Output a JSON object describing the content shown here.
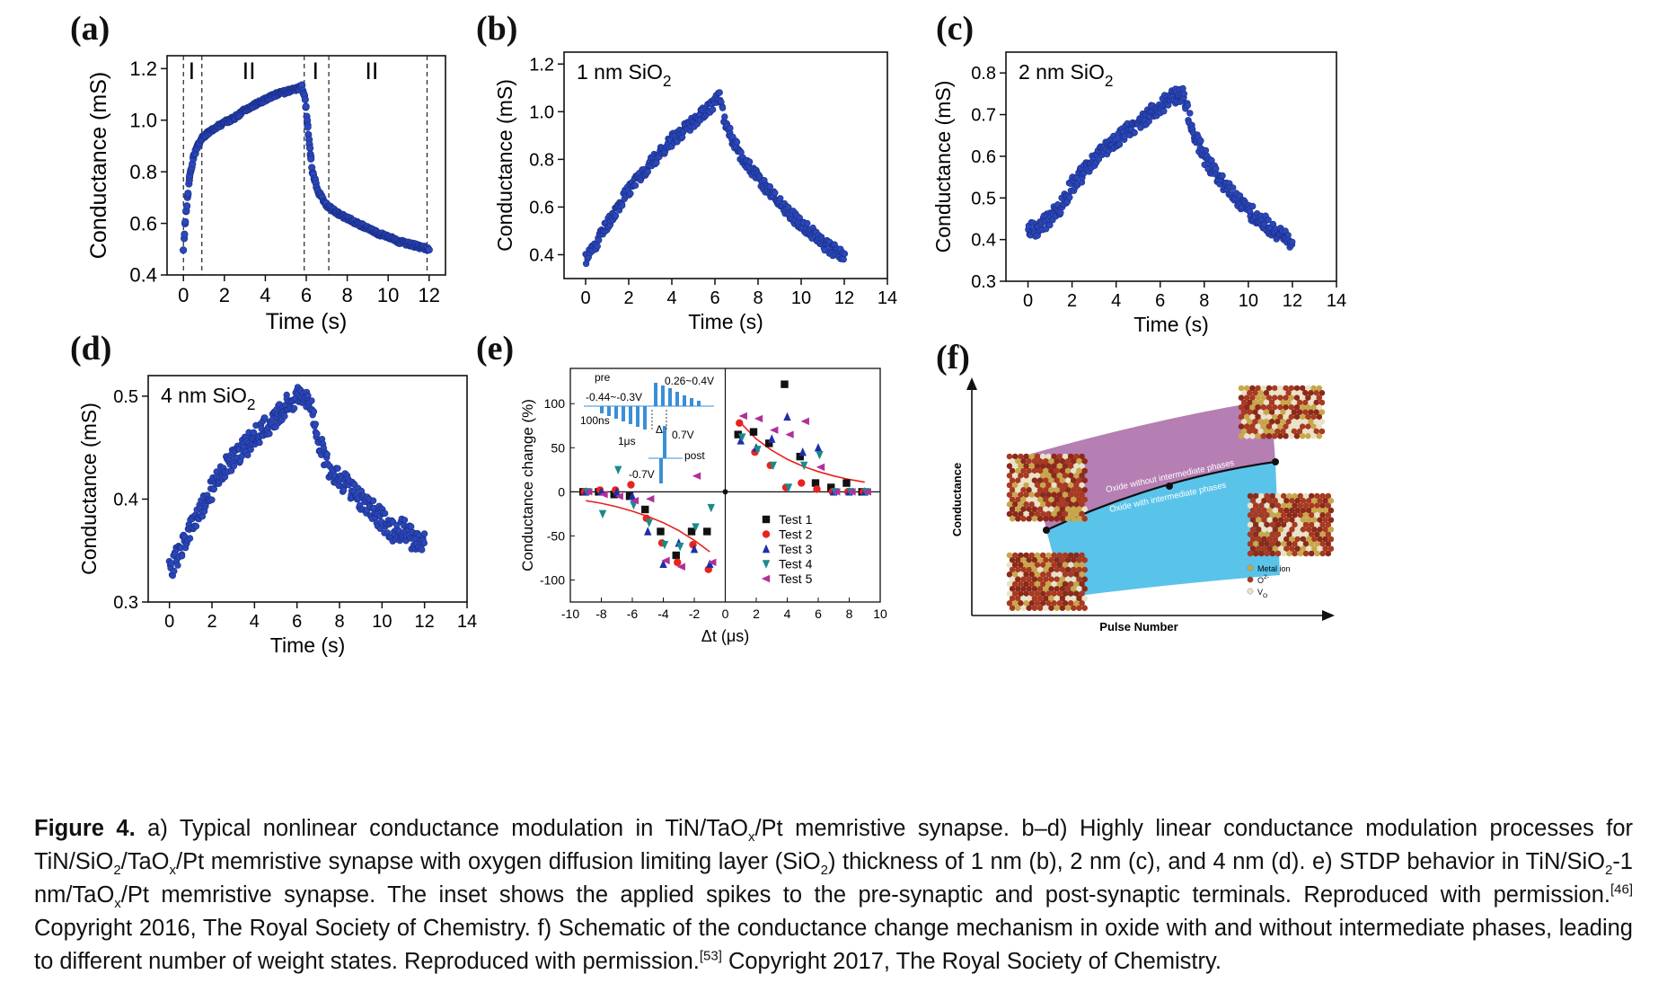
{
  "colors": {
    "marker": "#2b47b8",
    "marker_edge": "#1a2f8a",
    "fit": "#e8231e",
    "purple": "#b57fb3",
    "cyan": "#5ac3ea"
  },
  "chart_data": [
    {
      "panel": "(a)",
      "type": "scatter",
      "xlabel": "Time (s)",
      "ylabel": "Conductance (mS)",
      "xlim": [
        -0.8,
        12.8
      ],
      "ylim": [
        0.4,
        1.25
      ],
      "xticks": [
        0,
        2,
        4,
        6,
        8,
        10,
        12
      ],
      "yticks": [
        0.4,
        0.6,
        0.8,
        1.0,
        1.2
      ],
      "ytick_labels": [
        "0.4",
        "0.6",
        "0.8",
        "1.0",
        "1.2"
      ],
      "vlines": [
        0,
        0.9,
        5.9,
        7.1,
        11.9
      ],
      "regions": [
        {
          "x": 0.4,
          "label": "I"
        },
        {
          "x": 3.2,
          "label": "II"
        },
        {
          "x": 6.45,
          "label": "I"
        },
        {
          "x": 9.2,
          "label": "II"
        }
      ],
      "series": [
        {
          "x": [
            0,
            0.1,
            0.2,
            0.3,
            0.5,
            0.7,
            0.9,
            1.2,
            1.5,
            2,
            2.5,
            3,
            3.5,
            4,
            4.5,
            5,
            5.5,
            5.8,
            5.95,
            6.1,
            6.3,
            6.6,
            7,
            7.5,
            8,
            8.5,
            9,
            9.5,
            10,
            10.5,
            11,
            11.5,
            12
          ],
          "y": [
            0.5,
            0.62,
            0.7,
            0.78,
            0.86,
            0.9,
            0.93,
            0.95,
            0.97,
            0.99,
            1.01,
            1.04,
            1.06,
            1.08,
            1.1,
            1.11,
            1.12,
            1.13,
            1.08,
            0.95,
            0.8,
            0.72,
            0.67,
            0.64,
            0.62,
            0.6,
            0.58,
            0.56,
            0.55,
            0.53,
            0.52,
            0.51,
            0.5
          ]
        }
      ]
    },
    {
      "panel": "(b)",
      "type": "scatter",
      "annotation": "1 nm SiO2",
      "xlabel": "Time (s)",
      "ylabel": "Conductance (mS)",
      "xlim": [
        -1,
        14
      ],
      "ylim": [
        0.3,
        1.25
      ],
      "xticks": [
        0,
        2,
        4,
        6,
        8,
        10,
        12,
        14
      ],
      "yticks": [
        0.4,
        0.6,
        0.8,
        1.0,
        1.2
      ],
      "ytick_labels": [
        "0.4",
        "0.6",
        "0.8",
        "1.0",
        "1.2"
      ],
      "series": [
        {
          "x": [
            0,
            0.5,
            1,
            1.5,
            2,
            2.5,
            3,
            3.5,
            4,
            4.5,
            5,
            5.5,
            6,
            6.2,
            6.5,
            7,
            7.5,
            8,
            8.5,
            9,
            9.5,
            10,
            10.5,
            11,
            11.5,
            12
          ],
          "y": [
            0.38,
            0.45,
            0.53,
            0.6,
            0.67,
            0.73,
            0.78,
            0.83,
            0.88,
            0.92,
            0.96,
            1.0,
            1.04,
            1.06,
            0.95,
            0.85,
            0.78,
            0.72,
            0.67,
            0.62,
            0.57,
            0.53,
            0.49,
            0.45,
            0.42,
            0.39
          ]
        }
      ]
    },
    {
      "panel": "(c)",
      "type": "scatter",
      "annotation": "2 nm SiO2",
      "xlabel": "Time (s)",
      "ylabel": "Conductance (mS)",
      "xlim": [
        -1,
        14
      ],
      "ylim": [
        0.3,
        0.85
      ],
      "xticks": [
        0,
        2,
        4,
        6,
        8,
        10,
        12,
        14
      ],
      "yticks": [
        0.3,
        0.4,
        0.5,
        0.6,
        0.7,
        0.8
      ],
      "ytick_labels": [
        "0.3",
        "0.4",
        "0.5",
        "0.6",
        "0.7",
        "0.8"
      ],
      "series": [
        {
          "x": [
            0,
            0.5,
            1,
            1.5,
            2,
            2.5,
            3,
            3.5,
            4,
            4.5,
            5,
            5.5,
            6,
            6.5,
            7,
            7.5,
            8,
            8.5,
            9,
            9.5,
            10,
            10.5,
            11,
            11.5,
            12
          ],
          "y": [
            0.42,
            0.43,
            0.45,
            0.48,
            0.53,
            0.56,
            0.59,
            0.62,
            0.64,
            0.66,
            0.68,
            0.7,
            0.72,
            0.74,
            0.75,
            0.66,
            0.6,
            0.56,
            0.53,
            0.5,
            0.47,
            0.45,
            0.43,
            0.41,
            0.39
          ]
        }
      ]
    },
    {
      "panel": "(d)",
      "type": "scatter",
      "annotation": "4 nm SiO2",
      "xlabel": "Time (s)",
      "ylabel": "Conductance (mS)",
      "xlim": [
        -1,
        14
      ],
      "ylim": [
        0.3,
        0.52
      ],
      "xticks": [
        0,
        2,
        4,
        6,
        8,
        10,
        12,
        14
      ],
      "yticks": [
        0.3,
        0.4,
        0.5
      ],
      "ytick_labels": [
        "0.3",
        "0.4",
        "0.5"
      ],
      "series": [
        {
          "x": [
            0,
            0.5,
            1,
            1.5,
            2,
            2.5,
            3,
            3.5,
            4,
            4.5,
            5,
            5.5,
            6,
            6.5,
            7,
            7.5,
            8,
            8.5,
            9,
            9.5,
            10,
            10.5,
            11,
            11.5,
            12
          ],
          "y": [
            0.33,
            0.35,
            0.37,
            0.39,
            0.41,
            0.43,
            0.44,
            0.45,
            0.46,
            0.47,
            0.48,
            0.49,
            0.5,
            0.5,
            0.46,
            0.43,
            0.42,
            0.41,
            0.4,
            0.39,
            0.38,
            0.37,
            0.37,
            0.36,
            0.36
          ]
        }
      ]
    },
    {
      "panel": "(e)",
      "type": "scatter",
      "xlabel": "Δt (μs)",
      "ylabel": "Conductance change (%)",
      "xlim": [
        -10,
        10
      ],
      "ylim": [
        -125,
        140
      ],
      "xticks": [
        -10,
        -8,
        -6,
        -4,
        -2,
        0,
        2,
        4,
        6,
        8,
        10
      ],
      "yticks": [
        -100,
        -50,
        0,
        50,
        100
      ],
      "series": [
        {
          "name": "Test 1",
          "marker": "square",
          "color": "#111111",
          "x": [
            -9,
            -8,
            -7,
            -6,
            -5,
            -4,
            -3,
            -2,
            -1,
            1,
            2,
            3,
            4,
            5,
            6,
            7,
            8,
            9
          ],
          "y": [
            0,
            0,
            -3,
            -5,
            -20,
            -45,
            -72,
            -45,
            -45,
            65,
            68,
            55,
            122,
            40,
            10,
            5,
            10,
            0
          ]
        },
        {
          "name": "Test 2",
          "marker": "circle",
          "color": "#e8231e",
          "x": [
            -9,
            -8,
            -7,
            -6,
            -5,
            -4,
            -3,
            -2,
            -1,
            1,
            2,
            3,
            4,
            5,
            6,
            7,
            8,
            9
          ],
          "y": [
            0,
            2,
            2,
            8,
            -30,
            -58,
            -80,
            -60,
            -88,
            78,
            45,
            30,
            5,
            10,
            3,
            0,
            0,
            0
          ]
        },
        {
          "name": "Test 3",
          "marker": "triangle-up",
          "color": "#1e2fa8",
          "x": [
            -9,
            -8,
            -7,
            -6,
            -5,
            -4,
            -3,
            -2,
            -1,
            1,
            2,
            3,
            4,
            5,
            6,
            7,
            8,
            9
          ],
          "y": [
            0,
            0,
            0,
            -5,
            -45,
            -82,
            -58,
            -65,
            -82,
            58,
            50,
            60,
            85,
            45,
            50,
            0,
            0,
            0
          ]
        },
        {
          "name": "Test 4",
          "marker": "triangle-down",
          "color": "#1a8a8a",
          "x": [
            -9,
            -8,
            -7,
            -6,
            -5,
            -4,
            -3,
            -2,
            -1,
            1,
            2,
            3,
            4,
            5,
            6,
            7,
            8,
            9
          ],
          "y": [
            0,
            -25,
            25,
            -15,
            -35,
            -60,
            -62,
            -40,
            -18,
            62,
            48,
            30,
            5,
            30,
            42,
            0,
            0,
            0
          ]
        },
        {
          "name": "Test 5",
          "marker": "triangle-left",
          "color": "#b0309a",
          "x": [
            -9,
            -8,
            -7,
            -6,
            -5,
            -4,
            -3,
            -2,
            -1,
            1,
            2,
            3,
            4,
            5,
            6,
            7,
            8,
            9
          ],
          "y": [
            0,
            -3,
            -5,
            -10,
            -8,
            -78,
            -85,
            18,
            -80,
            86,
            83,
            70,
            65,
            80,
            28,
            0,
            0,
            0
          ]
        }
      ],
      "fit_curves": [
        {
          "x": [
            -9,
            -8,
            -7,
            -6,
            -5,
            -4,
            -3,
            -2,
            -1
          ],
          "y": [
            -10,
            -13,
            -17,
            -22,
            -28,
            -35,
            -44,
            -55,
            -68
          ]
        },
        {
          "x": [
            1,
            2,
            3,
            4,
            5,
            6,
            7,
            8,
            9
          ],
          "y": [
            78,
            60,
            47,
            37,
            29,
            23,
            18,
            14,
            11
          ]
        }
      ],
      "legend_position": "lower-right",
      "inset": {
        "pre": "pre",
        "post": "post",
        "v_pre_pos": "0.26~0.4V",
        "v_pre_neg": "-0.44~-0.3V",
        "width": "100ns",
        "interval": "1μs",
        "dt": "Δt",
        "v_post_pos": "0.7V",
        "v_post_neg": "-0.7V"
      }
    },
    {
      "panel": "(f)",
      "type": "diagram",
      "xlabel": "Pulse Number",
      "ylabel": "Conductance",
      "band_top_label": "Oxide without intermediate phases",
      "band_bottom_label": "Oxide with intermediate phases",
      "legend": [
        "Metal ion",
        "O2-",
        "VO"
      ]
    }
  ],
  "caption": {
    "figure_label": "Figure 4.",
    "text_a": " a) Typical nonlinear conductance modulation in TiN/TaO",
    "sub_x1": "x",
    "text_b": "/Pt memristive synapse. b–d) Highly linear conductance modulation processes for TiN/SiO",
    "sub_2a": "2",
    "text_c": "/TaO",
    "sub_x2": "x",
    "text_d": "/Pt memristive synapse with oxygen diffusion limiting layer (SiO",
    "sub_2b": "2",
    "text_e": ") thickness of 1 nm (b), 2 nm (c), and 4 nm (d). e) STDP behavior in TiN/SiO",
    "sub_2c": "2",
    "text_f": "-1 nm/TaO",
    "sub_x3": "x",
    "text_g": "/Pt memristive synapse. The inset shows the applied spikes to the pre-synaptic and post-synaptic terminals. Reproduced with permission.",
    "ref1": "[46]",
    "text_h": " Copyright 2016, The Royal Society of Chemistry. f) Schematic of the conductance change mechanism in oxide with and without intermediate phases, leading to different number of weight states. Reproduced with permission.",
    "ref2": "[53]",
    "text_i": " Copyright 2017, The Royal Society of Chemistry."
  }
}
